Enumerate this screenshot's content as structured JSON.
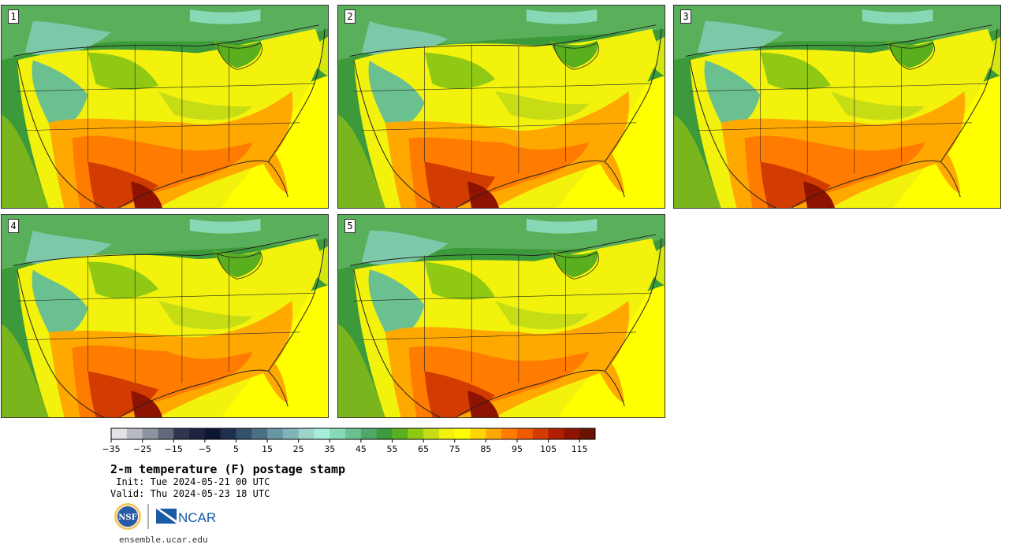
{
  "panels": [
    {
      "label": "1",
      "variant": "hot-south"
    },
    {
      "label": "2",
      "variant": "hot-south"
    },
    {
      "label": "3",
      "variant": "hot-south"
    },
    {
      "label": "4",
      "variant": "hot-south"
    },
    {
      "label": "5",
      "variant": "hot-south"
    }
  ],
  "colorbar": {
    "ticks": [
      "−35",
      "−25",
      "−15",
      "−5",
      "5",
      "15",
      "25",
      "35",
      "45",
      "55",
      "65",
      "75",
      "85",
      "95",
      "105",
      "115"
    ],
    "colors": [
      "#e2e3e6",
      "#b7bac1",
      "#8e93a0",
      "#646a7e",
      "#2f3650",
      "#1d2440",
      "#0f1730",
      "#1f2f4f",
      "#34506a",
      "#4a6f85",
      "#6795a3",
      "#7fb5b8",
      "#9cd3c8",
      "#a6eedb",
      "#86d9b4",
      "#6bc08f",
      "#4fa86a",
      "#3d9b3d",
      "#5aaf1e",
      "#90c913",
      "#c6dd16",
      "#f2f20d",
      "#ffff00",
      "#ffd400",
      "#ffa800",
      "#ff7c00",
      "#f05b00",
      "#d23c00",
      "#b01f00",
      "#8e1300",
      "#6a1200"
    ]
  },
  "title": "2-m temperature (F) postage stamp",
  "init": " Init: Tue 2024-05-21 00 UTC",
  "valid": "Valid: Thu 2024-05-23 18 UTC",
  "logos": {
    "nsf": "NSF",
    "ncar": "NCAR"
  },
  "url": "ensemble.ucar.edu"
}
